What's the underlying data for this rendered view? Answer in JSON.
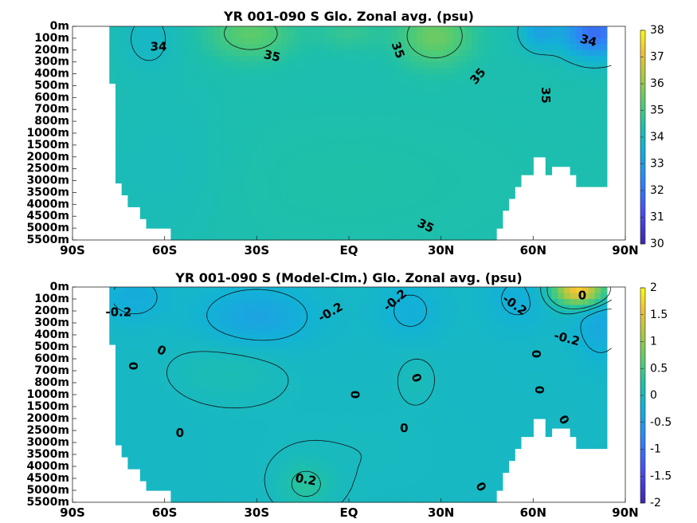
{
  "chart_data": [
    {
      "type": "heatmap",
      "title": "YR 001-090 S Glo. Zonal avg. (psu)",
      "x_tick_labels": [
        "90S",
        "60S",
        "30S",
        "EQ",
        "30N",
        "60N",
        "90N"
      ],
      "x_ticks_deg": [
        -90,
        -60,
        -30,
        0,
        30,
        60,
        90
      ],
      "y_tick_labels": [
        "0m",
        "100m",
        "200m",
        "300m",
        "400m",
        "500m",
        "600m",
        "700m",
        "800m",
        "1000m",
        "1500m",
        "2000m",
        "2500m",
        "3000m",
        "3500m",
        "4000m",
        "4500m",
        "5000m",
        "5500m"
      ],
      "colorbar": {
        "min": 30,
        "max": 38,
        "ticks": [
          "30",
          "31",
          "32",
          "33",
          "34",
          "35",
          "36",
          "37",
          "38"
        ]
      },
      "contour_labels": [
        {
          "text": "34",
          "lat": -62,
          "level": 1.7,
          "angle": 0
        },
        {
          "text": "35",
          "lat": -25,
          "level": 2.5,
          "angle": 12
        },
        {
          "text": "35",
          "lat": 16,
          "level": 2.0,
          "angle": 70
        },
        {
          "text": "35",
          "lat": 42,
          "level": 4.2,
          "angle": -50
        },
        {
          "text": "34",
          "lat": 78,
          "level": 1.2,
          "angle": 15
        },
        {
          "text": "35",
          "lat": 64,
          "level": 5.8,
          "angle": 90
        },
        {
          "text": "35",
          "lat": 25,
          "level": 16.8,
          "angle": 25
        }
      ],
      "fields": {
        "base": 34.25,
        "blobs": [
          {
            "lat": -32,
            "level": 0.6,
            "slat": 14,
            "slev": 2.2,
            "amp": 1.1
          },
          {
            "lat": 28,
            "level": 0.8,
            "slat": 12,
            "slev": 2.5,
            "amp": 1.3
          },
          {
            "lat": 0,
            "level": 0.5,
            "slat": 10,
            "slev": 1.5,
            "amp": 0.5
          },
          {
            "lat": 80,
            "level": 0.5,
            "slat": 10,
            "slev": 2.0,
            "amp": -2.4
          },
          {
            "lat": 62,
            "level": 0.5,
            "slat": 6,
            "slev": 1.5,
            "amp": -1.0
          },
          {
            "lat": -65,
            "level": 1.0,
            "slat": 10,
            "slev": 3.0,
            "amp": -0.35
          },
          {
            "lat": -60,
            "level": 12,
            "slat": 22,
            "slev": 6,
            "amp": -0.2
          },
          {
            "lat": 0,
            "level": 13,
            "slat": 60,
            "slev": 6,
            "amp": 0.15
          }
        ]
      }
    },
    {
      "type": "heatmap",
      "title": "YR 001-090 S (Model-Clm.) Glo. Zonal avg. (psu)",
      "x_tick_labels": [
        "90S",
        "60S",
        "30S",
        "EQ",
        "30N",
        "60N",
        "90N"
      ],
      "x_ticks_deg": [
        -90,
        -60,
        -30,
        0,
        30,
        60,
        90
      ],
      "y_tick_labels": [
        "0m",
        "100m",
        "200m",
        "300m",
        "400m",
        "500m",
        "600m",
        "700m",
        "800m",
        "1000m",
        "1500m",
        "2000m",
        "2500m",
        "3000m",
        "3500m",
        "4000m",
        "4500m",
        "5000m",
        "5500m"
      ],
      "colorbar": {
        "min": -2,
        "max": 2,
        "ticks": [
          "2",
          "1.5",
          "1",
          "0.5",
          "0",
          "-0.5",
          "-1",
          "-1.5",
          "-2"
        ]
      },
      "contour_labels": [
        {
          "text": "-0.2",
          "lat": -75,
          "level": 2.1,
          "angle": 0
        },
        {
          "text": "0",
          "lat": -61,
          "level": 5.3,
          "angle": 25
        },
        {
          "text": "0",
          "lat": -70,
          "level": 6.6,
          "angle": -90
        },
        {
          "text": "-0.2",
          "lat": -6,
          "level": 2.1,
          "angle": -30
        },
        {
          "text": "-0.2",
          "lat": 15,
          "level": 1.1,
          "angle": -40
        },
        {
          "text": "0",
          "lat": 2,
          "level": 9.0,
          "angle": 90
        },
        {
          "text": "0",
          "lat": 22,
          "level": 7.6,
          "angle": 70
        },
        {
          "text": "-0.2",
          "lat": 54,
          "level": 1.5,
          "angle": 35
        },
        {
          "text": "0",
          "lat": 76,
          "level": 0.7,
          "angle": 0
        },
        {
          "text": "-0.2",
          "lat": 71,
          "level": 4.3,
          "angle": 15
        },
        {
          "text": "0",
          "lat": 61,
          "level": 5.6,
          "angle": 90
        },
        {
          "text": "0",
          "lat": 62,
          "level": 8.6,
          "angle": 90
        },
        {
          "text": "0",
          "lat": 70,
          "level": 11.1,
          "angle": 60
        },
        {
          "text": "0",
          "lat": -55,
          "level": 12.2,
          "angle": 0
        },
        {
          "text": "0",
          "lat": 18,
          "level": 11.8,
          "angle": 0
        },
        {
          "text": "0.2",
          "lat": -14,
          "level": 16.1,
          "angle": 10
        },
        {
          "text": "0",
          "lat": 43,
          "level": 16.7,
          "angle": 60
        }
      ],
      "fields": {
        "base": -0.05,
        "blobs": [
          {
            "lat": -30,
            "level": 2.5,
            "slat": 18,
            "slev": 2.5,
            "amp": -0.35
          },
          {
            "lat": -70,
            "level": 0.8,
            "slat": 10,
            "slev": 2.0,
            "amp": -0.25
          },
          {
            "lat": 20,
            "level": 2.0,
            "slat": 10,
            "slev": 2.5,
            "amp": -0.2
          },
          {
            "lat": 55,
            "level": 1.0,
            "slat": 10,
            "slev": 2.5,
            "amp": -0.2
          },
          {
            "lat": -40,
            "level": 7,
            "slat": 18,
            "slev": 2.5,
            "amp": 0.15
          },
          {
            "lat": 22,
            "level": 7.5,
            "slat": 6,
            "slev": 2.0,
            "amp": 0.1
          },
          {
            "lat": 0,
            "level": 14,
            "slat": 50,
            "slev": 6,
            "amp": 0.05
          },
          {
            "lat": -14,
            "level": 16.5,
            "slat": 8,
            "slev": 1.8,
            "amp": 0.3
          },
          {
            "lat": 75,
            "level": 0.3,
            "slat": 8,
            "slev": 1.2,
            "amp": 1.8
          },
          {
            "lat": 82,
            "level": 3,
            "slat": 8,
            "slev": 3,
            "amp": -0.3
          }
        ]
      }
    }
  ],
  "ocean_mask": {
    "depth_levels": [
      "0m",
      "100m",
      "200m",
      "300m",
      "400m",
      "500m",
      "600m",
      "700m",
      "800m",
      "1000m",
      "1500m",
      "2000m",
      "2500m",
      "3000m",
      "3500m",
      "4000m",
      "4500m",
      "5000m",
      "5500m"
    ],
    "columns": [
      {
        "lat0": -90,
        "lat1": -77,
        "floor": 0
      },
      {
        "lat0": -77,
        "lat1": -76,
        "floor": 4.8
      },
      {
        "lat0": -76,
        "lat1": -75,
        "floor": 10.2
      },
      {
        "lat0": -75,
        "lat1": -73,
        "floor": 13.2
      },
      {
        "lat0": -73,
        "lat1": -71,
        "floor": 14.2
      },
      {
        "lat0": -71,
        "lat1": -68,
        "floor": 15.2
      },
      {
        "lat0": -68,
        "lat1": -65,
        "floor": 16.2
      },
      {
        "lat0": -65,
        "lat1": -58,
        "floor": 17.0
      },
      {
        "lat0": -58,
        "lat1": -43,
        "floor": 18
      },
      {
        "lat0": -43,
        "lat1": -40,
        "floor": 19
      },
      {
        "lat0": -40,
        "lat1": -35,
        "floor": 18
      },
      {
        "lat0": -35,
        "lat1": -33,
        "floor": 19
      },
      {
        "lat0": -33,
        "lat1": -30,
        "floor": 18
      },
      {
        "lat0": -30,
        "lat1": -27,
        "floor": 19
      },
      {
        "lat0": -27,
        "lat1": -12,
        "floor": 19
      },
      {
        "lat0": -12,
        "lat1": -6,
        "floor": 18
      },
      {
        "lat0": -6,
        "lat1": -3,
        "floor": 19
      },
      {
        "lat0": -3,
        "lat1": 2,
        "floor": 18
      },
      {
        "lat0": 2,
        "lat1": 10,
        "floor": 18
      },
      {
        "lat0": 10,
        "lat1": 22,
        "floor": 19
      },
      {
        "lat0": 22,
        "lat1": 36,
        "floor": 19
      },
      {
        "lat0": 36,
        "lat1": 45,
        "floor": 19
      },
      {
        "lat0": 45,
        "lat1": 48,
        "floor": 18
      },
      {
        "lat0": 48,
        "lat1": 50,
        "floor": 17
      },
      {
        "lat0": 50,
        "lat1": 52,
        "floor": 15.5
      },
      {
        "lat0": 52,
        "lat1": 54,
        "floor": 14.5
      },
      {
        "lat0": 54,
        "lat1": 57,
        "floor": 13.5
      },
      {
        "lat0": 57,
        "lat1": 60,
        "floor": 12.5
      },
      {
        "lat0": 60,
        "lat1": 64,
        "floor": 11.0
      },
      {
        "lat0": 64,
        "lat1": 66,
        "floor": 12.5
      },
      {
        "lat0": 66,
        "lat1": 72,
        "floor": 11.8
      },
      {
        "lat0": 72,
        "lat1": 75,
        "floor": 12.5
      },
      {
        "lat0": 75,
        "lat1": 85,
        "floor": 13.5
      },
      {
        "lat0": 85,
        "lat1": 90,
        "floor": 0
      }
    ]
  }
}
